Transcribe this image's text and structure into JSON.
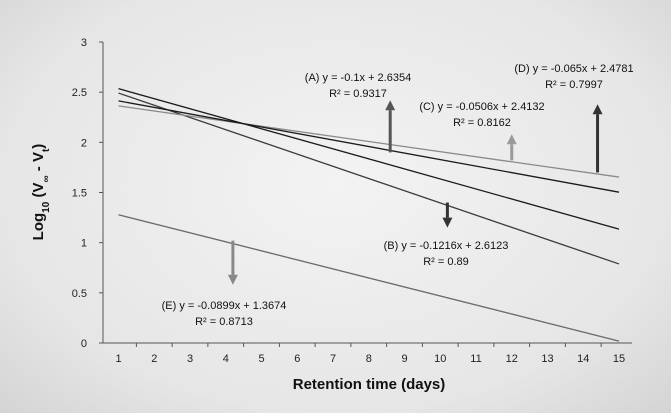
{
  "chart_data": {
    "type": "line",
    "xlabel": "Retention time (days)",
    "ylabel": {
      "base": "Log",
      "sub1": "10",
      "mid": " (V",
      "sub2": "∞",
      "dash": " - V",
      "sub3": "t",
      "end": ")"
    },
    "xlim": [
      1,
      15
    ],
    "ylim": [
      0,
      3
    ],
    "x_ticks": [
      1,
      2,
      3,
      4,
      5,
      6,
      7,
      8,
      9,
      10,
      11,
      12,
      13,
      14,
      15
    ],
    "y_ticks": [
      "0",
      "0.5",
      "1",
      "1.5",
      "2",
      "2.5",
      "3"
    ],
    "series": [
      {
        "label": "A",
        "slope": -0.1,
        "intercept": 2.6354,
        "x": [
          1,
          15
        ],
        "y": [
          2.535,
          1.135
        ],
        "color": "#1a1a1a"
      },
      {
        "label": "B",
        "slope": -0.1216,
        "intercept": 2.6123,
        "x": [
          1,
          15
        ],
        "y": [
          2.491,
          0.788
        ],
        "color": "#3a3a3a"
      },
      {
        "label": "C",
        "slope": -0.0506,
        "intercept": 2.4132,
        "x": [
          1,
          15
        ],
        "y": [
          2.363,
          1.654
        ],
        "color": "#8a8a8a"
      },
      {
        "label": "D",
        "slope": -0.065,
        "intercept": 2.4781,
        "x": [
          1,
          15
        ],
        "y": [
          2.413,
          1.503
        ],
        "color": "#1a1a1a"
      },
      {
        "label": "E",
        "slope": -0.0899,
        "intercept": 1.3674,
        "x": [
          1,
          15
        ],
        "y": [
          1.278,
          0.019
        ],
        "color": "#6a6a6a"
      }
    ],
    "annotations": [
      {
        "eq": "(A) y = -0.1x + 2.6354",
        "r2": "R² = 0.9317",
        "arrow": "up",
        "arrow_x": 8.6,
        "arrow_from": 1.9,
        "arrow_to": 2.42,
        "color": "#555555"
      },
      {
        "eq": "(B) y = -0.1216x + 2.6123",
        "r2": "R² = 0.89",
        "arrow": "down",
        "arrow_x": 10.2,
        "arrow_from": 1.4,
        "arrow_to": 1.15,
        "color": "#333333"
      },
      {
        "eq": "(C) y = -0.0506x + 2.4132",
        "r2": "R² = 0.8162",
        "arrow": "up",
        "arrow_x": 12.0,
        "arrow_from": 1.82,
        "arrow_to": 2.08,
        "color": "#9a9a9a"
      },
      {
        "eq": "(D) y = -0.065x + 2.4781",
        "r2": "R² = 0.7997",
        "arrow": "up",
        "arrow_x": 14.4,
        "arrow_from": 1.7,
        "arrow_to": 2.38,
        "color": "#333333"
      },
      {
        "eq": "(E) y = -0.0899x + 1.3674",
        "r2": "R² = 0.8713",
        "arrow": "down",
        "arrow_x": 4.2,
        "arrow_from": 1.02,
        "arrow_to": 0.58,
        "color": "#888888"
      }
    ]
  }
}
